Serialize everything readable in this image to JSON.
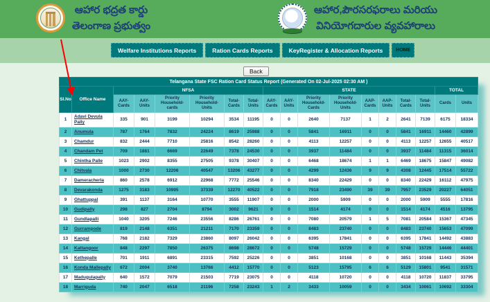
{
  "header": {
    "left": {
      "line1": "ఆహార భద్రత కార్డు",
      "line2": "తెలంగాణ ప్రభుత్వం"
    },
    "right": {
      "line1": "ఆహార,పౌరసరఫరాలు మరియు",
      "line2": "వినియోగదారుల వ్యవహారాలు"
    }
  },
  "nav": {
    "items": [
      "Welfare Institutions Reports",
      "Ration Cards Reports",
      "KeyRegister & Allocation Reports",
      "HOME"
    ]
  },
  "back_button": "Back",
  "report": {
    "title": "Telangana State FSC Ration Card Status Report (Generated On 02-Jul-2025 02:30 AM )",
    "col_groups": {
      "slno": "Sl.No",
      "office": "Office Name",
      "nfsa": "NFSA",
      "state": "STATE",
      "total": "TOTAL"
    },
    "nfsa_cols": [
      "AAY-Cards",
      "AAY-Units",
      "Priority Household-cards",
      "Priority Household-Units",
      "Total-Cards",
      "Total-Units"
    ],
    "state_cols": [
      "AAY-Cards",
      "AAY-Units",
      "Priority Household-Cards",
      "Priority Household-Units",
      "AAP-Cards",
      "AAP-Units",
      "Total-Cards",
      "Total-Units"
    ],
    "total_cols": [
      "Cards",
      "Units"
    ],
    "rows": [
      {
        "slno": 1,
        "office": "Adavi Devula Pally",
        "values": [
          335,
          901,
          3199,
          10294,
          3534,
          11195,
          0,
          0,
          2640,
          7137,
          1,
          2,
          2641,
          7139,
          6175,
          18334
        ]
      },
      {
        "slno": 2,
        "office": "Anumula",
        "values": [
          787,
          1764,
          7832,
          24224,
          8619,
          25988,
          0,
          0,
          5841,
          16911,
          0,
          0,
          5841,
          16911,
          14460,
          42899
        ]
      },
      {
        "slno": 3,
        "office": "Chamdur",
        "values": [
          832,
          2444,
          7710,
          25816,
          8542,
          28260,
          0,
          0,
          4113,
          12257,
          0,
          0,
          4113,
          12257,
          12655,
          40517
        ]
      },
      {
        "slno": 4,
        "office": "Chandam Pet",
        "values": [
          709,
          1881,
          6669,
          22649,
          7378,
          24530,
          0,
          0,
          3937,
          11484,
          0,
          0,
          3937,
          11484,
          11315,
          36014
        ]
      },
      {
        "slno": 5,
        "office": "Chintha Palle",
        "values": [
          1023,
          2902,
          8355,
          27505,
          9378,
          30407,
          0,
          0,
          6468,
          18674,
          1,
          1,
          6469,
          18675,
          15847,
          49082
        ]
      },
      {
        "slno": 6,
        "office": "Chitvala",
        "values": [
          1000,
          2730,
          12206,
          40547,
          13206,
          43277,
          0,
          0,
          4299,
          12436,
          9,
          9,
          4308,
          12445,
          17514,
          55722
        ]
      },
      {
        "slno": 7,
        "office": "Dameracherla",
        "values": [
          860,
          2578,
          6912,
          22968,
          7772,
          25546,
          0,
          0,
          8340,
          22429,
          0,
          0,
          8340,
          22429,
          16112,
          47975
        ]
      },
      {
        "slno": 8,
        "office": "Devarakonda",
        "values": [
          1275,
          3183,
          10995,
          37339,
          12270,
          40522,
          0,
          0,
          7918,
          23490,
          39,
          39,
          7957,
          23529,
          20227,
          64051
        ]
      },
      {
        "slno": 9,
        "office": "Ghattuppal",
        "values": [
          391,
          1137,
          3164,
          10770,
          3555,
          11907,
          0,
          0,
          2000,
          5909,
          0,
          0,
          2000,
          5909,
          5555,
          17816
        ]
      },
      {
        "slno": 10,
        "office": "Gudipally",
        "values": [
          298,
          827,
          2704,
          8794,
          3002,
          9621,
          0,
          0,
          1514,
          4174,
          0,
          0,
          1514,
          4174,
          4516,
          13795
        ]
      },
      {
        "slno": 11,
        "office": "Gundlapalli",
        "values": [
          1040,
          3205,
          7246,
          23556,
          8286,
          26761,
          0,
          0,
          7080,
          20579,
          1,
          5,
          7081,
          20584,
          15367,
          47345
        ]
      },
      {
        "slno": 12,
        "office": "Gurrampode",
        "values": [
          819,
          2148,
          6351,
          21211,
          7170,
          23359,
          0,
          0,
          8483,
          23740,
          0,
          0,
          8483,
          23740,
          15653,
          47099
        ]
      },
      {
        "slno": 13,
        "office": "Kangal",
        "values": [
          768,
          2182,
          7329,
          23860,
          8097,
          26042,
          0,
          0,
          6395,
          17841,
          0,
          0,
          6395,
          17841,
          14492,
          43883
        ]
      },
      {
        "slno": 14,
        "office": "Kattangoor",
        "values": [
          848,
          2297,
          7850,
          26375,
          8698,
          28672,
          0,
          0,
          5748,
          15729,
          0,
          0,
          5748,
          15729,
          14446,
          44401
        ]
      },
      {
        "slno": 15,
        "office": "Kethepalle",
        "values": [
          701,
          1911,
          6891,
          23315,
          7592,
          25226,
          0,
          0,
          3851,
          10168,
          0,
          0,
          3851,
          10168,
          11443,
          35394
        ]
      },
      {
        "slno": 16,
        "office": "Konda Mallepally",
        "values": [
          672,
          2004,
          3740,
          13766,
          4412,
          15770,
          0,
          0,
          5123,
          15795,
          6,
          6,
          5129,
          15801,
          9541,
          31571
        ]
      },
      {
        "slno": 17,
        "office": "Madugulapally",
        "values": [
          640,
          1572,
          7079,
          21503,
          7719,
          23075,
          0,
          0,
          4118,
          10720,
          0,
          0,
          4118,
          10720,
          11837,
          33795
        ]
      },
      {
        "slno": 18,
        "office": "Marriguda",
        "values": [
          740,
          2047,
          6518,
          21196,
          7258,
          23243,
          1,
          2,
          3433,
          10059,
          0,
          0,
          3434,
          10061,
          10692,
          33304
        ]
      }
    ]
  },
  "colors": {
    "header_green": "#57ac5b",
    "nav_band_green": "#a6d3aa",
    "teal_dark": "#00797c",
    "teal_subheader": "#5cc4c6",
    "teal_row": "#4cc0c2",
    "text_navy": "#15305c",
    "arrow_red": "#ff0000"
  }
}
